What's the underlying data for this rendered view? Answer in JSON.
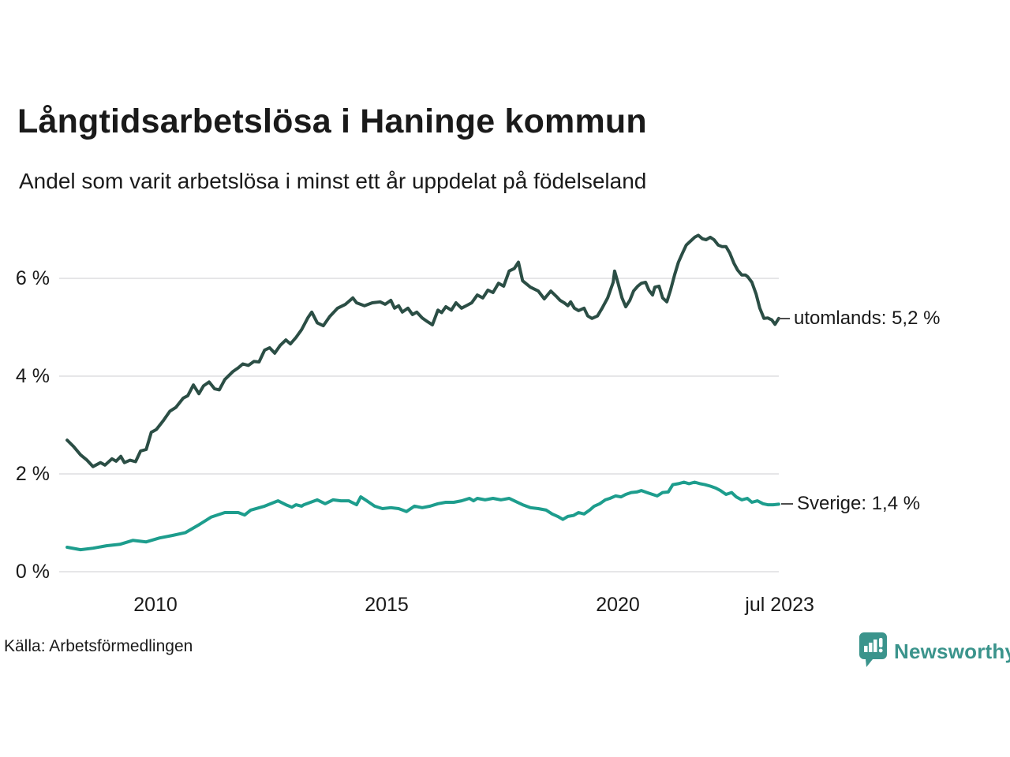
{
  "header": {
    "title": "Långtidsarbetslösa i Haninge kommun",
    "subtitle": "Andel som varit arbetslösa i minst ett år uppdelat på födelseland"
  },
  "footer": {
    "source": "Källa: Arbetsförmedlingen",
    "brand_name": "Newsworthy",
    "brand_color": "#3b948c"
  },
  "chart_data": {
    "type": "line",
    "title": "Långtidsarbetslösa i Haninge kommun",
    "subtitle": "Andel som varit arbetslösa i minst ett år uppdelat på födelseland",
    "x_unit": "decimal year (monthly observations)",
    "y_unit": "percent",
    "xlim": [
      2008.0,
      2023.58
    ],
    "ylim": [
      0,
      7.2
    ],
    "grid": "horizontal",
    "grid_color": "#e6e6e8",
    "yticks": [
      {
        "value": 0,
        "label": "0 %"
      },
      {
        "value": 2,
        "label": "2 %"
      },
      {
        "value": 4,
        "label": "4 %"
      },
      {
        "value": 6,
        "label": "6 %"
      }
    ],
    "xticks": [
      {
        "value": 2010,
        "label": "2010"
      },
      {
        "value": 2015,
        "label": "2015"
      },
      {
        "value": 2020,
        "label": "2020"
      },
      {
        "value": 2023.5,
        "label": "jul 2023"
      }
    ],
    "series": [
      {
        "name": "utomlands",
        "color": "#2b4e45",
        "end_label": "utomlands: 5,2 %",
        "last_value_label": "5,2 %",
        "points": [
          [
            2008.09,
            2.69
          ],
          [
            2008.23,
            2.56
          ],
          [
            2008.38,
            2.39
          ],
          [
            2008.52,
            2.28
          ],
          [
            2008.65,
            2.15
          ],
          [
            2008.81,
            2.23
          ],
          [
            2008.91,
            2.18
          ],
          [
            2009.06,
            2.31
          ],
          [
            2009.15,
            2.26
          ],
          [
            2009.25,
            2.36
          ],
          [
            2009.33,
            2.23
          ],
          [
            2009.45,
            2.28
          ],
          [
            2009.57,
            2.25
          ],
          [
            2009.68,
            2.47
          ],
          [
            2009.8,
            2.5
          ],
          [
            2009.91,
            2.85
          ],
          [
            2010.02,
            2.91
          ],
          [
            2010.17,
            3.09
          ],
          [
            2010.31,
            3.28
          ],
          [
            2010.44,
            3.36
          ],
          [
            2010.6,
            3.55
          ],
          [
            2010.7,
            3.6
          ],
          [
            2010.82,
            3.82
          ],
          [
            2010.94,
            3.64
          ],
          [
            2011.04,
            3.8
          ],
          [
            2011.16,
            3.88
          ],
          [
            2011.28,
            3.74
          ],
          [
            2011.38,
            3.72
          ],
          [
            2011.5,
            3.93
          ],
          [
            2011.67,
            4.09
          ],
          [
            2011.79,
            4.17
          ],
          [
            2011.89,
            4.25
          ],
          [
            2012.01,
            4.22
          ],
          [
            2012.13,
            4.3
          ],
          [
            2012.24,
            4.29
          ],
          [
            2012.36,
            4.53
          ],
          [
            2012.47,
            4.58
          ],
          [
            2012.58,
            4.47
          ],
          [
            2012.7,
            4.63
          ],
          [
            2012.82,
            4.74
          ],
          [
            2012.92,
            4.66
          ],
          [
            2013.04,
            4.79
          ],
          [
            2013.16,
            4.95
          ],
          [
            2013.3,
            5.2
          ],
          [
            2013.38,
            5.31
          ],
          [
            2013.5,
            5.09
          ],
          [
            2013.63,
            5.03
          ],
          [
            2013.77,
            5.22
          ],
          [
            2013.94,
            5.39
          ],
          [
            2014.11,
            5.47
          ],
          [
            2014.27,
            5.6
          ],
          [
            2014.35,
            5.5
          ],
          [
            2014.52,
            5.44
          ],
          [
            2014.69,
            5.5
          ],
          [
            2014.86,
            5.52
          ],
          [
            2014.97,
            5.47
          ],
          [
            2015.09,
            5.55
          ],
          [
            2015.17,
            5.39
          ],
          [
            2015.26,
            5.44
          ],
          [
            2015.34,
            5.31
          ],
          [
            2015.46,
            5.39
          ],
          [
            2015.56,
            5.26
          ],
          [
            2015.65,
            5.31
          ],
          [
            2015.77,
            5.19
          ],
          [
            2015.89,
            5.11
          ],
          [
            2015.99,
            5.05
          ],
          [
            2016.11,
            5.35
          ],
          [
            2016.19,
            5.3
          ],
          [
            2016.28,
            5.42
          ],
          [
            2016.4,
            5.35
          ],
          [
            2016.5,
            5.5
          ],
          [
            2016.62,
            5.39
          ],
          [
            2016.74,
            5.45
          ],
          [
            2016.84,
            5.5
          ],
          [
            2016.96,
            5.66
          ],
          [
            2017.08,
            5.6
          ],
          [
            2017.19,
            5.76
          ],
          [
            2017.3,
            5.71
          ],
          [
            2017.42,
            5.9
          ],
          [
            2017.53,
            5.84
          ],
          [
            2017.65,
            6.15
          ],
          [
            2017.76,
            6.2
          ],
          [
            2017.85,
            6.33
          ],
          [
            2017.94,
            5.95
          ],
          [
            2018.11,
            5.82
          ],
          [
            2018.28,
            5.74
          ],
          [
            2018.41,
            5.58
          ],
          [
            2018.55,
            5.74
          ],
          [
            2018.67,
            5.63
          ],
          [
            2018.75,
            5.55
          ],
          [
            2018.84,
            5.5
          ],
          [
            2018.92,
            5.44
          ],
          [
            2018.98,
            5.52
          ],
          [
            2019.06,
            5.39
          ],
          [
            2019.15,
            5.34
          ],
          [
            2019.27,
            5.39
          ],
          [
            2019.35,
            5.23
          ],
          [
            2019.44,
            5.18
          ],
          [
            2019.56,
            5.23
          ],
          [
            2019.66,
            5.39
          ],
          [
            2019.78,
            5.6
          ],
          [
            2019.9,
            5.92
          ],
          [
            2019.93,
            6.15
          ],
          [
            2020.0,
            5.92
          ],
          [
            2020.09,
            5.6
          ],
          [
            2020.17,
            5.42
          ],
          [
            2020.26,
            5.55
          ],
          [
            2020.34,
            5.74
          ],
          [
            2020.43,
            5.84
          ],
          [
            2020.51,
            5.9
          ],
          [
            2020.6,
            5.92
          ],
          [
            2020.67,
            5.76
          ],
          [
            2020.75,
            5.66
          ],
          [
            2020.8,
            5.82
          ],
          [
            2020.89,
            5.84
          ],
          [
            2020.97,
            5.6
          ],
          [
            2021.06,
            5.52
          ],
          [
            2021.14,
            5.76
          ],
          [
            2021.23,
            6.08
          ],
          [
            2021.31,
            6.33
          ],
          [
            2021.4,
            6.52
          ],
          [
            2021.48,
            6.68
          ],
          [
            2021.57,
            6.76
          ],
          [
            2021.66,
            6.84
          ],
          [
            2021.74,
            6.88
          ],
          [
            2021.83,
            6.81
          ],
          [
            2021.91,
            6.79
          ],
          [
            2022.0,
            6.84
          ],
          [
            2022.08,
            6.79
          ],
          [
            2022.17,
            6.68
          ],
          [
            2022.25,
            6.65
          ],
          [
            2022.34,
            6.65
          ],
          [
            2022.42,
            6.52
          ],
          [
            2022.51,
            6.31
          ],
          [
            2022.59,
            6.17
          ],
          [
            2022.68,
            6.07
          ],
          [
            2022.76,
            6.07
          ],
          [
            2022.81,
            6.03
          ],
          [
            2022.9,
            5.92
          ],
          [
            2022.99,
            5.68
          ],
          [
            2023.07,
            5.39
          ],
          [
            2023.16,
            5.18
          ],
          [
            2023.24,
            5.19
          ],
          [
            2023.33,
            5.15
          ],
          [
            2023.4,
            5.06
          ],
          [
            2023.48,
            5.18
          ]
        ]
      },
      {
        "name": "Sverige",
        "color": "#1d9d8d",
        "end_label": "Sverige: 1,4 %",
        "last_value_label": "1,4 %",
        "points": [
          [
            2008.09,
            0.5
          ],
          [
            2008.38,
            0.45
          ],
          [
            2008.65,
            0.48
          ],
          [
            2008.94,
            0.53
          ],
          [
            2009.23,
            0.56
          ],
          [
            2009.51,
            0.64
          ],
          [
            2009.8,
            0.61
          ],
          [
            2010.09,
            0.69
          ],
          [
            2010.36,
            0.74
          ],
          [
            2010.65,
            0.8
          ],
          [
            2010.94,
            0.96
          ],
          [
            2011.21,
            1.12
          ],
          [
            2011.5,
            1.21
          ],
          [
            2011.79,
            1.21
          ],
          [
            2011.93,
            1.16
          ],
          [
            2012.06,
            1.26
          ],
          [
            2012.36,
            1.34
          ],
          [
            2012.65,
            1.45
          ],
          [
            2012.82,
            1.37
          ],
          [
            2012.95,
            1.32
          ],
          [
            2013.04,
            1.37
          ],
          [
            2013.16,
            1.34
          ],
          [
            2013.21,
            1.37
          ],
          [
            2013.5,
            1.47
          ],
          [
            2013.67,
            1.39
          ],
          [
            2013.84,
            1.47
          ],
          [
            2014.01,
            1.45
          ],
          [
            2014.18,
            1.45
          ],
          [
            2014.35,
            1.37
          ],
          [
            2014.44,
            1.53
          ],
          [
            2014.57,
            1.45
          ],
          [
            2014.74,
            1.34
          ],
          [
            2014.91,
            1.29
          ],
          [
            2015.09,
            1.31
          ],
          [
            2015.26,
            1.29
          ],
          [
            2015.43,
            1.23
          ],
          [
            2015.6,
            1.34
          ],
          [
            2015.77,
            1.31
          ],
          [
            2015.94,
            1.34
          ],
          [
            2016.11,
            1.39
          ],
          [
            2016.28,
            1.42
          ],
          [
            2016.45,
            1.42
          ],
          [
            2016.62,
            1.45
          ],
          [
            2016.79,
            1.5
          ],
          [
            2016.88,
            1.45
          ],
          [
            2016.96,
            1.5
          ],
          [
            2017.13,
            1.47
          ],
          [
            2017.3,
            1.5
          ],
          [
            2017.47,
            1.47
          ],
          [
            2017.65,
            1.5
          ],
          [
            2017.76,
            1.45
          ],
          [
            2017.94,
            1.37
          ],
          [
            2018.11,
            1.31
          ],
          [
            2018.28,
            1.29
          ],
          [
            2018.45,
            1.26
          ],
          [
            2018.58,
            1.18
          ],
          [
            2018.7,
            1.13
          ],
          [
            2018.81,
            1.07
          ],
          [
            2018.92,
            1.13
          ],
          [
            2019.04,
            1.15
          ],
          [
            2019.15,
            1.21
          ],
          [
            2019.27,
            1.18
          ],
          [
            2019.39,
            1.26
          ],
          [
            2019.49,
            1.34
          ],
          [
            2019.61,
            1.39
          ],
          [
            2019.73,
            1.47
          ],
          [
            2019.83,
            1.5
          ],
          [
            2019.95,
            1.55
          ],
          [
            2020.07,
            1.53
          ],
          [
            2020.17,
            1.58
          ],
          [
            2020.29,
            1.62
          ],
          [
            2020.41,
            1.63
          ],
          [
            2020.51,
            1.66
          ],
          [
            2020.63,
            1.62
          ],
          [
            2020.75,
            1.58
          ],
          [
            2020.85,
            1.55
          ],
          [
            2020.97,
            1.62
          ],
          [
            2021.09,
            1.63
          ],
          [
            2021.19,
            1.78
          ],
          [
            2021.31,
            1.8
          ],
          [
            2021.43,
            1.83
          ],
          [
            2021.54,
            1.8
          ],
          [
            2021.66,
            1.83
          ],
          [
            2021.78,
            1.8
          ],
          [
            2021.88,
            1.78
          ],
          [
            2022.0,
            1.75
          ],
          [
            2022.12,
            1.71
          ],
          [
            2022.22,
            1.66
          ],
          [
            2022.34,
            1.58
          ],
          [
            2022.46,
            1.62
          ],
          [
            2022.56,
            1.53
          ],
          [
            2022.68,
            1.47
          ],
          [
            2022.8,
            1.5
          ],
          [
            2022.9,
            1.42
          ],
          [
            2023.02,
            1.45
          ],
          [
            2023.14,
            1.39
          ],
          [
            2023.24,
            1.37
          ],
          [
            2023.36,
            1.37
          ],
          [
            2023.48,
            1.38
          ]
        ]
      }
    ]
  }
}
